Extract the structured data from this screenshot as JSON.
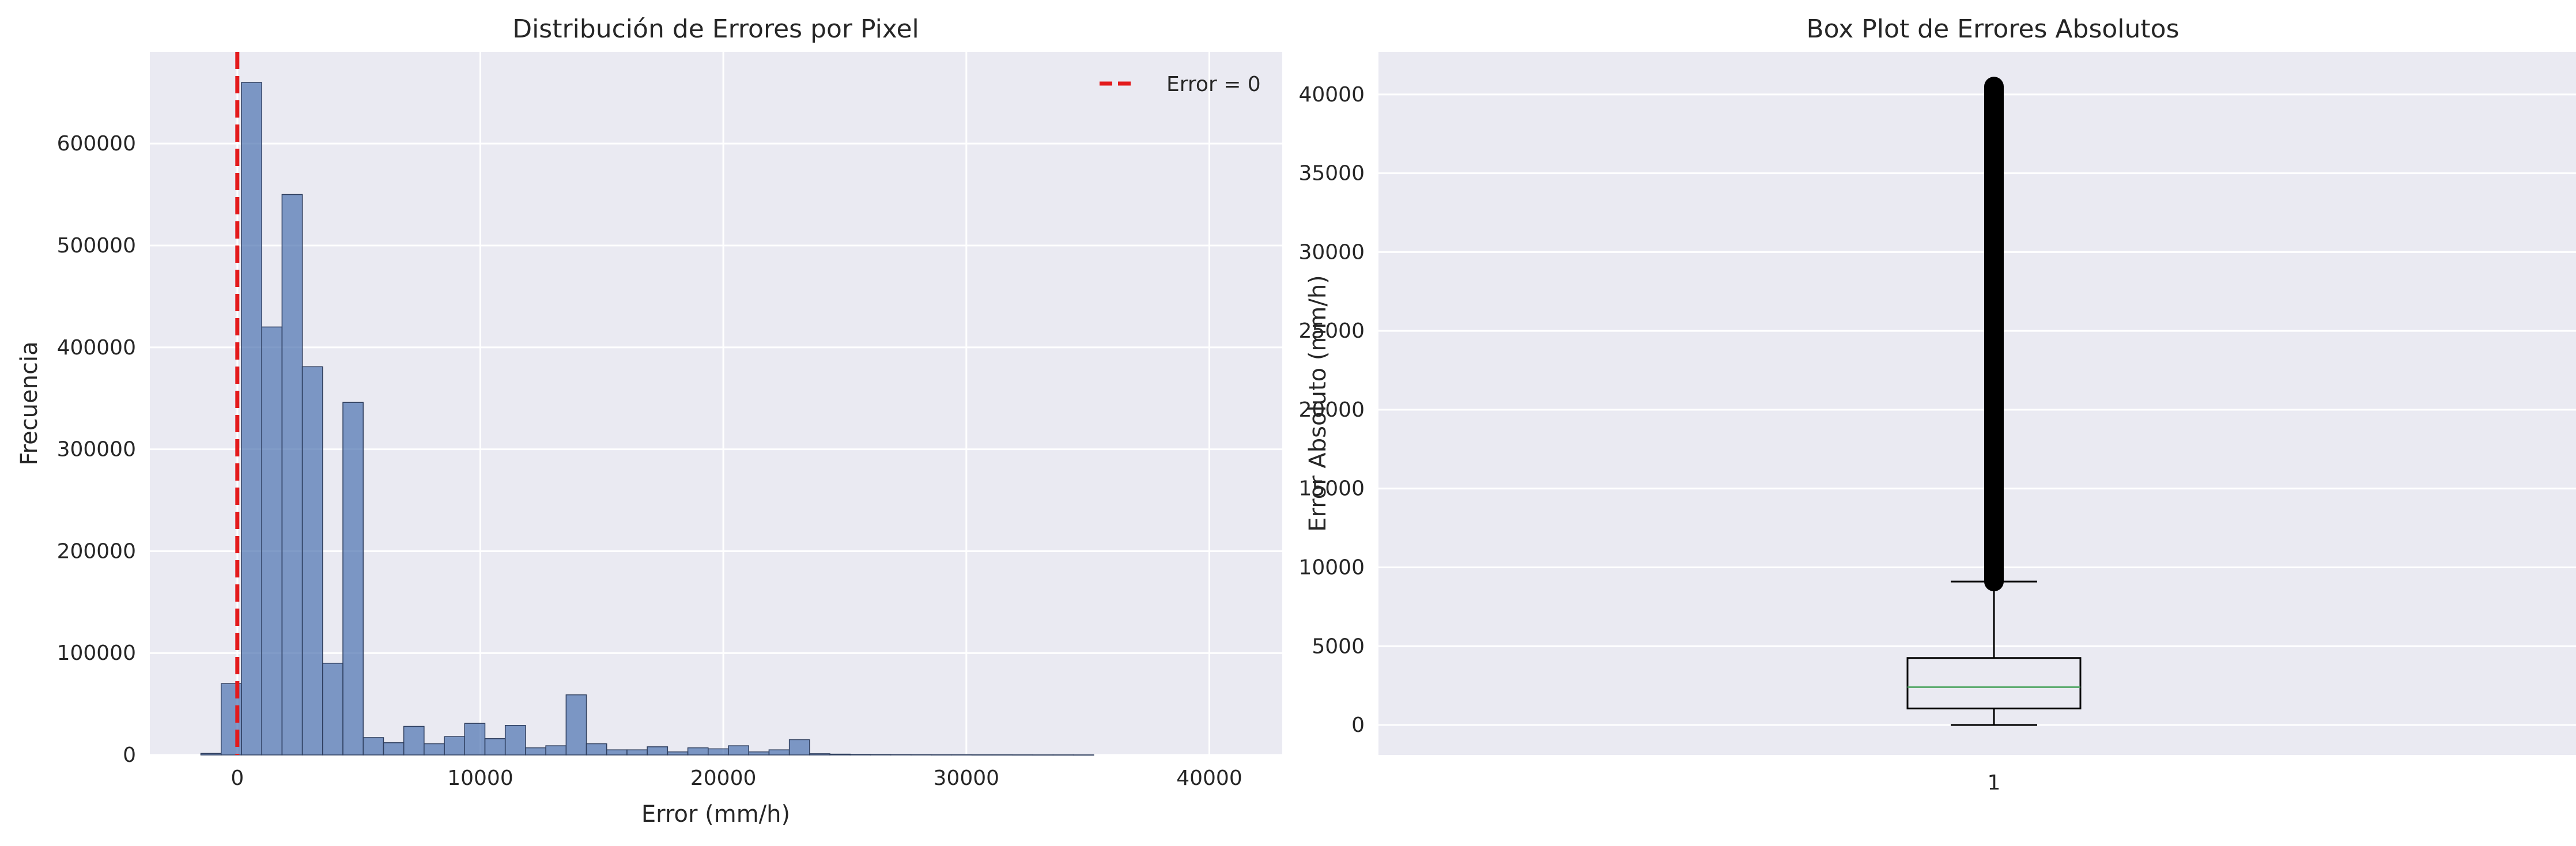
{
  "colors": {
    "plot_bg": "#eaeaf2",
    "grid": "#ffffff",
    "bar_fill": "#4c72b0",
    "bar_edge": "#2f3f5f",
    "zero_line": "#e31a1c",
    "median": "#55a868",
    "box": "#000000"
  },
  "chart_data": [
    {
      "type": "bar",
      "title": "Distribución de Errores por Pixel",
      "xlabel": "Error (mm/h)",
      "ylabel": "Frecuencia",
      "xlim": [
        -3600,
        43000
      ],
      "ylim": [
        0,
        690000
      ],
      "xticks": [
        0,
        10000,
        20000,
        30000,
        40000
      ],
      "xtick_labels": [
        "0",
        "10000",
        "20000",
        "30000",
        "40000"
      ],
      "yticks": [
        0,
        100000,
        200000,
        300000,
        400000,
        500000,
        600000
      ],
      "ytick_labels": [
        "0",
        "100000",
        "200000",
        "300000",
        "400000",
        "500000",
        "600000"
      ],
      "grid": true,
      "bin_start": -1500,
      "bin_width": 835,
      "values": [
        1500,
        70000,
        660000,
        420000,
        550000,
        381000,
        90000,
        346000,
        17000,
        12000,
        28000,
        11000,
        18000,
        31000,
        16000,
        29000,
        7000,
        9000,
        59000,
        11000,
        5000,
        5000,
        8000,
        3000,
        7000,
        6000,
        9000,
        3000,
        5000,
        15000,
        1200,
        800,
        500,
        400,
        300,
        250,
        200,
        200,
        150,
        150,
        120,
        100,
        100,
        80
      ],
      "vline": {
        "x": 0,
        "label": "Error = 0"
      },
      "legend": {
        "position": "top-right",
        "entries": [
          "Error = 0"
        ]
      }
    },
    {
      "type": "box",
      "title": "Box Plot de Errores Absolutos",
      "xlabel": "",
      "ylabel": "Error Absoluto (mm/h)",
      "ylim": [
        -1900,
        42700
      ],
      "yticks": [
        0,
        5000,
        10000,
        15000,
        20000,
        25000,
        30000,
        35000,
        40000
      ],
      "ytick_labels": [
        "0",
        "5000",
        "10000",
        "15000",
        "20000",
        "25000",
        "30000",
        "35000",
        "40000"
      ],
      "xtick_labels": [
        "1"
      ],
      "grid": true,
      "box": {
        "whisker_low": 0,
        "q1": 1050,
        "median": 2400,
        "q3": 4250,
        "whisker_high": 9100,
        "outliers_min": 9100,
        "outliers_max": 40500
      }
    }
  ]
}
